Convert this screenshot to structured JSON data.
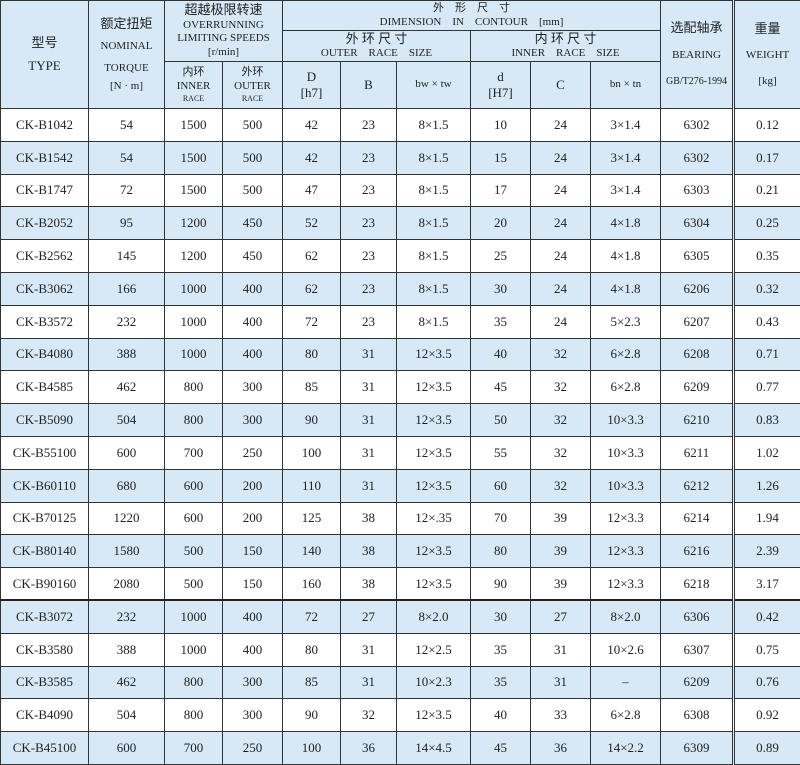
{
  "header": {
    "type_cn": "型号",
    "type_en": "TYPE",
    "torque_cn": "额定扭矩",
    "torque_en1": "NOMINAL",
    "torque_en2": "TORQUE",
    "torque_unit": "[N · m]",
    "speed_cn": "超越极限转速",
    "speed_en1": "OVERRUNNING",
    "speed_en2": "LIMITING SPEEDS",
    "speed_unit": "[r/min]",
    "inner_cn": "内环",
    "inner_en": "INNER",
    "inner_race": "RACE",
    "outer_cn": "外环",
    "outer_en": "OUTER",
    "outer_race": "RACE",
    "dim_cn": "外　形　尺　寸",
    "dim_en": "DIMENSION　IN　CONTOUR　[mm]",
    "outer_size_cn": "外 环 尺 寸",
    "outer_size_en": "OUTER　RACE　SIZE",
    "inner_size_cn": "内 环 尺 寸",
    "inner_size_en": "INNER　RACE　SIZE",
    "D": "D",
    "D_tol": "[h7]",
    "B": "B",
    "bw": "bw × tw",
    "d": "d",
    "d_tol": "[H7]",
    "C": "C",
    "bn": "bn × tn",
    "bearing_cn": "选配轴承",
    "bearing_en": "BEARING",
    "bearing_std": "GB/T276-1994",
    "weight_cn": "重量",
    "weight_en": "WEIGHT",
    "weight_unit": "[kg]"
  },
  "rows": [
    [
      "CK-B1042",
      "54",
      "1500",
      "500",
      "42",
      "23",
      "8×1.5",
      "10",
      "24",
      "3×1.4",
      "6302",
      "0.12"
    ],
    [
      "CK-B1542",
      "54",
      "1500",
      "500",
      "42",
      "23",
      "8×1.5",
      "15",
      "24",
      "3×1.4",
      "6302",
      "0.17"
    ],
    [
      "CK-B1747",
      "72",
      "1500",
      "500",
      "47",
      "23",
      "8×1.5",
      "17",
      "24",
      "3×1.4",
      "6303",
      "0.21"
    ],
    [
      "CK-B2052",
      "95",
      "1200",
      "450",
      "52",
      "23",
      "8×1.5",
      "20",
      "24",
      "4×1.8",
      "6304",
      "0.25"
    ],
    [
      "CK-B2562",
      "145",
      "1200",
      "450",
      "62",
      "23",
      "8×1.5",
      "25",
      "24",
      "4×1.8",
      "6305",
      "0.35"
    ],
    [
      "CK-B3062",
      "166",
      "1000",
      "400",
      "62",
      "23",
      "8×1.5",
      "30",
      "24",
      "4×1.8",
      "6206",
      "0.32"
    ],
    [
      "CK-B3572",
      "232",
      "1000",
      "400",
      "72",
      "23",
      "8×1.5",
      "35",
      "24",
      "5×2.3",
      "6207",
      "0.43"
    ],
    [
      "CK-B4080",
      "388",
      "1000",
      "400",
      "80",
      "31",
      "12×3.5",
      "40",
      "32",
      "6×2.8",
      "6208",
      "0.71"
    ],
    [
      "CK-B4585",
      "462",
      "800",
      "300",
      "85",
      "31",
      "12×3.5",
      "45",
      "32",
      "6×2.8",
      "6209",
      "0.77"
    ],
    [
      "CK-B5090",
      "504",
      "800",
      "300",
      "90",
      "31",
      "12×3.5",
      "50",
      "32",
      "10×3.3",
      "6210",
      "0.83"
    ],
    [
      "CK-B55100",
      "600",
      "700",
      "250",
      "100",
      "31",
      "12×3.5",
      "55",
      "32",
      "10×3.3",
      "6211",
      "1.02"
    ],
    [
      "CK-B60110",
      "680",
      "600",
      "200",
      "110",
      "31",
      "12×3.5",
      "60",
      "32",
      "10×3.3",
      "6212",
      "1.26"
    ],
    [
      "CK-B70125",
      "1220",
      "600",
      "200",
      "125",
      "38",
      "12×.35",
      "70",
      "39",
      "12×3.3",
      "6214",
      "1.94"
    ],
    [
      "CK-B80140",
      "1580",
      "500",
      "150",
      "140",
      "38",
      "12×3.5",
      "80",
      "39",
      "12×3.3",
      "6216",
      "2.39"
    ],
    [
      "CK-B90160",
      "2080",
      "500",
      "150",
      "160",
      "38",
      "12×3.5",
      "90",
      "39",
      "12×3.3",
      "6218",
      "3.17"
    ],
    [
      "CK-B3072",
      "232",
      "1000",
      "400",
      "72",
      "27",
      "8×2.0",
      "30",
      "27",
      "8×2.0",
      "6306",
      "0.42"
    ],
    [
      "CK-B3580",
      "388",
      "1000",
      "400",
      "80",
      "31",
      "12×2.5",
      "35",
      "31",
      "10×2.6",
      "6307",
      "0.75"
    ],
    [
      "CK-B3585",
      "462",
      "800",
      "300",
      "85",
      "31",
      "10×2.3",
      "35",
      "31",
      "–",
      "6209",
      "0.76"
    ],
    [
      "CK-B4090",
      "504",
      "800",
      "300",
      "90",
      "32",
      "12×3.5",
      "40",
      "33",
      "6×2.8",
      "6308",
      "0.92"
    ],
    [
      "CK-B45100",
      "600",
      "700",
      "250",
      "100",
      "36",
      "14×4.5",
      "45",
      "36",
      "14×2.2",
      "6309",
      "0.89"
    ]
  ],
  "colors": {
    "header_bg": "#d7e9f7",
    "row_alt": "#d7e9f7"
  }
}
